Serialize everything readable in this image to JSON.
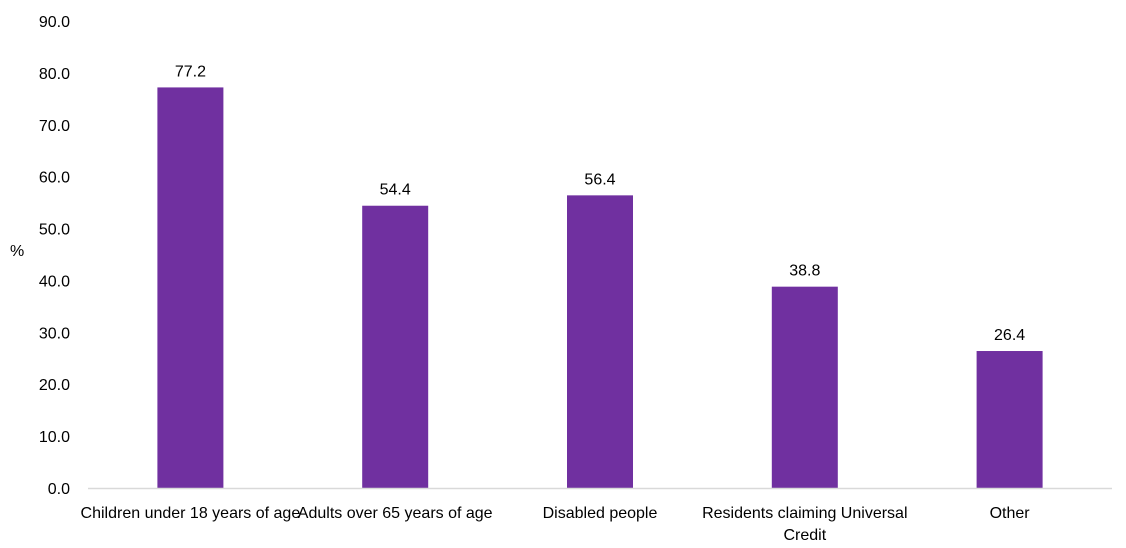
{
  "chart_data": {
    "type": "bar",
    "title": "",
    "xlabel": "",
    "ylabel": "%",
    "ylim": [
      0,
      90
    ],
    "yticks": [
      "0.0",
      "10.0",
      "20.0",
      "30.0",
      "40.0",
      "50.0",
      "60.0",
      "70.0",
      "80.0",
      "90.0"
    ],
    "categories": [
      "Children under 18 years of age",
      "Adults over 65 years of age",
      "Disabled people",
      "Residents claiming Universal Credit",
      "Other"
    ],
    "values": [
      77.2,
      54.4,
      56.4,
      38.8,
      26.4
    ],
    "data_labels": [
      "77.2",
      "54.4",
      "56.4",
      "38.8",
      "26.4"
    ],
    "grid": false,
    "legend": "none",
    "colors": {
      "bar": "#7030A0",
      "axis": "#D9D9D9"
    }
  }
}
